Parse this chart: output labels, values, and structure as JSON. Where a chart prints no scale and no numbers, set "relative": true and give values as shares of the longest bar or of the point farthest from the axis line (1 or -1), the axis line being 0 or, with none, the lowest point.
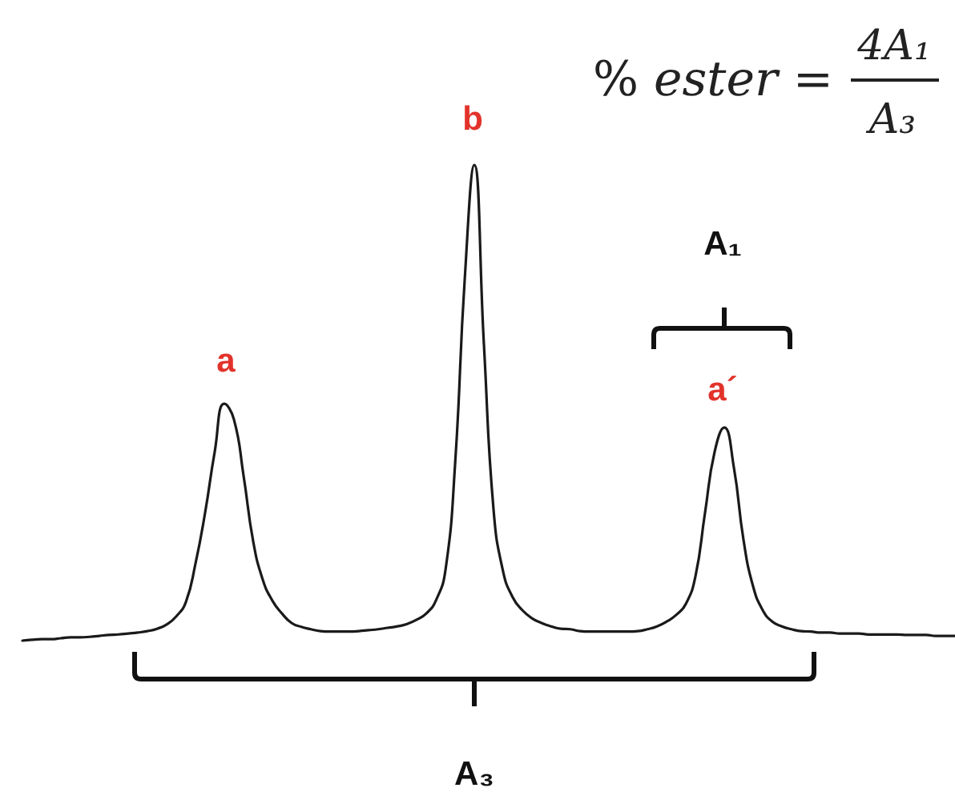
{
  "chart_data": {
    "type": "line",
    "relative": true,
    "color": "#1a1a1a",
    "categories": [
      null,
      null,
      null,
      null,
      null,
      null,
      null,
      null,
      null,
      null,
      null,
      null,
      null,
      null,
      null,
      null,
      null,
      null,
      null,
      null,
      null,
      null,
      null,
      null,
      null,
      null,
      null,
      null,
      null,
      null,
      null,
      null,
      null,
      null,
      null,
      null,
      null,
      null,
      null,
      null,
      null,
      null,
      null,
      null,
      null,
      null,
      null,
      null,
      null,
      null,
      null,
      null,
      null,
      null,
      null,
      null,
      null,
      null,
      null,
      null,
      null,
      null,
      null,
      null,
      null,
      null,
      null,
      null,
      null,
      null,
      null,
      null,
      null,
      null,
      null,
      null,
      null,
      null,
      null,
      null,
      null,
      null,
      null,
      null,
      null,
      null,
      null,
      null,
      null,
      null,
      null,
      null,
      null,
      null,
      null,
      null,
      null,
      null
    ],
    "values": [
      0,
      0.002,
      0.003,
      0.003,
      0.005,
      0.007,
      0.007,
      0.008,
      0.01,
      0.012,
      0.013,
      0.015,
      0.017,
      0.02,
      0.025,
      0.034,
      0.051,
      0.081,
      0.162,
      0.269,
      0.397,
      0.498,
      0.465,
      0.347,
      0.209,
      0.128,
      0.084,
      0.057,
      0.037,
      0.029,
      0.024,
      0.02,
      0.019,
      0.019,
      0.019,
      0.02,
      0.022,
      0.024,
      0.027,
      0.03,
      0.035,
      0.044,
      0.057,
      0.084,
      0.148,
      0.37,
      0.758,
      1,
      0.623,
      0.276,
      0.145,
      0.091,
      0.064,
      0.047,
      0.037,
      0.03,
      0.025,
      0.024,
      0.02,
      0.019,
      0.019,
      0.019,
      0.019,
      0.019,
      0.02,
      0.024,
      0.03,
      0.04,
      0.054,
      0.077,
      0.135,
      0.269,
      0.397,
      0.448,
      0.364,
      0.212,
      0.114,
      0.064,
      0.04,
      0.03,
      0.024,
      0.02,
      0.019,
      0.017,
      0.017,
      0.015,
      0.015,
      0.015,
      0.013,
      0.013,
      0.013,
      0.013,
      0.012,
      0.012,
      0.012,
      0.01,
      0.01,
      0.01
    ],
    "annotations": [
      "% ester =",
      "4A₁",
      "A₃",
      "b",
      "A₁",
      "a",
      "a´",
      "A₃"
    ]
  }
}
